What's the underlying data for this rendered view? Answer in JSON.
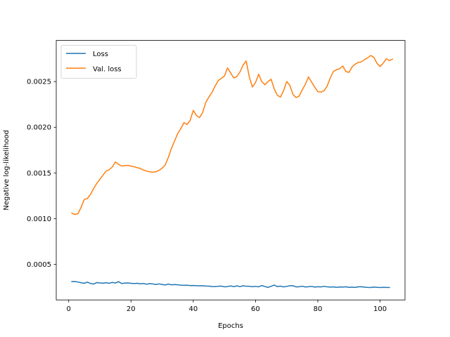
{
  "chart_data": {
    "type": "line",
    "xlabel": "Epochs",
    "ylabel": "Negative log-likelihood",
    "xlim": [
      -4,
      108
    ],
    "ylim": [
      0.00011,
      0.00295
    ],
    "x_ticks": [
      0,
      20,
      40,
      60,
      80,
      100
    ],
    "y_ticks": [
      0.0005,
      0.001,
      0.0015,
      0.002,
      0.0025
    ],
    "x_tick_labels": [
      "0",
      "20",
      "40",
      "60",
      "80",
      "100"
    ],
    "y_tick_labels": [
      "0.0005",
      "0.0010",
      "0.0015",
      "0.0020",
      "0.0025"
    ],
    "grid": false,
    "legend_position": "top-left",
    "series": [
      {
        "name": "Loss",
        "color": "#1f77b4",
        "values": [
          0.00031,
          0.000312,
          0.000305,
          0.000298,
          0.000292,
          0.000305,
          0.00029,
          0.000284,
          0.0003,
          0.000296,
          0.000293,
          0.000299,
          0.000292,
          0.000302,
          0.000295,
          0.00031,
          0.00029,
          0.000294,
          0.000296,
          0.000292,
          0.000289,
          0.000292,
          0.000286,
          0.00029,
          0.000282,
          0.000288,
          0.000285,
          0.000279,
          0.000286,
          0.000279,
          0.000274,
          0.000284,
          0.000275,
          0.000279,
          0.000276,
          0.000272,
          0.00027,
          0.000271,
          0.000267,
          0.000268,
          0.000266,
          0.000264,
          0.000265,
          0.000262,
          0.000261,
          0.000257,
          0.000256,
          0.000259,
          0.000261,
          0.000254,
          0.000256,
          0.000263,
          0.000255,
          0.000264,
          0.000255,
          0.000265,
          0.00026,
          0.000259,
          0.000255,
          0.000258,
          0.000254,
          0.000268,
          0.000256,
          0.000248,
          0.000259,
          0.000273,
          0.000256,
          0.000261,
          0.000253,
          0.000258,
          0.000265,
          0.000266,
          0.000253,
          0.000255,
          0.00026,
          0.000252,
          0.000255,
          0.000258,
          0.000251,
          0.000255,
          0.000253,
          0.000258,
          0.000254,
          0.000251,
          0.000253,
          0.000248,
          0.000252,
          0.000251,
          0.000254,
          0.000248,
          0.00025,
          0.000247,
          0.000254,
          0.000255,
          0.00025,
          0.000247,
          0.000246,
          0.000251,
          0.000248,
          0.000246,
          0.000248,
          0.000247,
          0.000246
        ]
      },
      {
        "name": "Val. loss",
        "color": "#ff7f0e",
        "values": [
          0.00106,
          0.001045,
          0.001055,
          0.001125,
          0.00121,
          0.00122,
          0.001265,
          0.00133,
          0.001385,
          0.00143,
          0.001475,
          0.00152,
          0.001535,
          0.001565,
          0.00162,
          0.001595,
          0.001575,
          0.00158,
          0.001582,
          0.001575,
          0.001568,
          0.001558,
          0.001548,
          0.001532,
          0.00152,
          0.001512,
          0.001508,
          0.001512,
          0.001528,
          0.001552,
          0.001588,
          0.00167,
          0.00177,
          0.00185,
          0.00193,
          0.001985,
          0.00205,
          0.00203,
          0.002075,
          0.002185,
          0.00213,
          0.002105,
          0.00216,
          0.00227,
          0.00233,
          0.00238,
          0.00245,
          0.00251,
          0.002535,
          0.00256,
          0.00265,
          0.002595,
          0.00254,
          0.002555,
          0.002605,
          0.00268,
          0.002725,
          0.00255,
          0.00244,
          0.00249,
          0.00258,
          0.0025,
          0.002465,
          0.0025,
          0.002525,
          0.00242,
          0.00235,
          0.00233,
          0.0024,
          0.0025,
          0.00246,
          0.00236,
          0.002325,
          0.00234,
          0.00241,
          0.00247,
          0.00255,
          0.002495,
          0.00244,
          0.00239,
          0.002385,
          0.0024,
          0.00245,
          0.00254,
          0.00261,
          0.00263,
          0.00264,
          0.00267,
          0.00261,
          0.0026,
          0.00266,
          0.00269,
          0.00271,
          0.002715,
          0.00274,
          0.00276,
          0.002785,
          0.002765,
          0.0027,
          0.002665,
          0.0027,
          0.00275,
          0.00273,
          0.002745
        ]
      }
    ]
  }
}
